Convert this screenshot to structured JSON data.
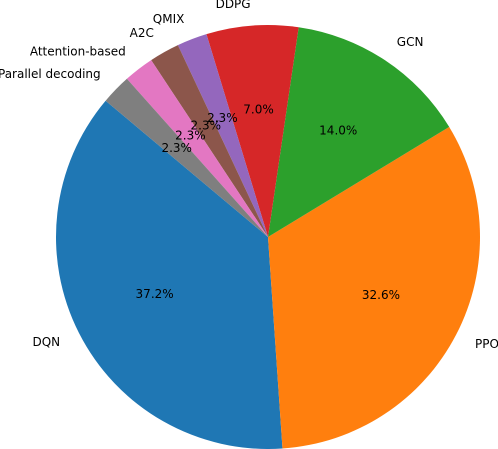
{
  "chart_data": {
    "type": "pie",
    "categories": [
      "DQN",
      "PPO",
      "GCN",
      "DDPG",
      "QMIX",
      "A2C",
      "Attention-based",
      "Parallel decoding"
    ],
    "values": [
      37.2,
      32.6,
      14.0,
      7.0,
      2.3,
      2.3,
      2.3,
      2.3
    ],
    "value_labels": [
      "37.2%",
      "32.6%",
      "14.0%",
      "7.0%",
      "2.3%",
      "2.3%",
      "2.3%",
      "2.3%"
    ],
    "colors": [
      "#1f77b4",
      "#ff7f0e",
      "#2ca02c",
      "#d62728",
      "#9467bd",
      "#8c564b",
      "#e377c2",
      "#7f7f7f"
    ]
  }
}
